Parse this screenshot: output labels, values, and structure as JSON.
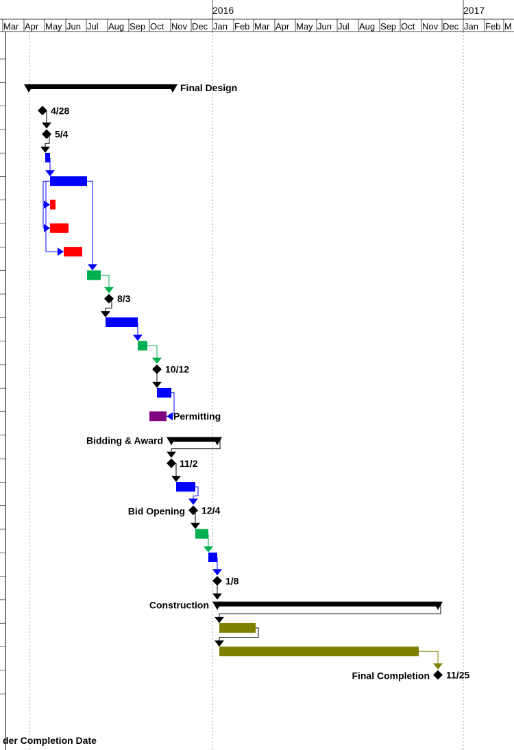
{
  "chart_data": {
    "type": "gantt",
    "timescale": {
      "years": [
        "2016",
        "2017"
      ],
      "months": [
        "Mar",
        "Apr",
        "May",
        "Jun",
        "Jul",
        "Aug",
        "Sep",
        "Oct",
        "Nov",
        "Dec",
        "Jan",
        "Feb",
        "Mar",
        "Apr",
        "May",
        "Jun",
        "Jul",
        "Aug",
        "Sep",
        "Oct",
        "Nov",
        "Dec",
        "Jan",
        "Feb",
        "M"
      ]
    },
    "colors": {
      "summary": "#000000",
      "blue": "#0000ff",
      "red": "#ff0000",
      "green": "#00b050",
      "purple": "#800080",
      "olive": "#808000",
      "milestone": "#000000"
    },
    "rows": [
      {
        "kind": "summary",
        "start": "2015-04-08",
        "end": "2015-11-04",
        "label": "Final Design",
        "label_side": "right"
      },
      {
        "kind": "milestone",
        "date": "2015-04-28",
        "label": "4/28",
        "label_side": "right"
      },
      {
        "kind": "milestone",
        "date": "2015-05-04",
        "label": "5/4",
        "label_side": "right"
      },
      {
        "kind": "task",
        "start": "2015-05-02",
        "end": "2015-05-09",
        "color": "blue"
      },
      {
        "kind": "task",
        "start": "2015-05-09",
        "end": "2015-07-02",
        "color": "blue"
      },
      {
        "kind": "task",
        "start": "2015-05-09",
        "end": "2015-05-17",
        "color": "red"
      },
      {
        "kind": "task",
        "start": "2015-05-09",
        "end": "2015-06-05",
        "color": "red"
      },
      {
        "kind": "task",
        "start": "2015-05-29",
        "end": "2015-06-25",
        "color": "red"
      },
      {
        "kind": "task",
        "start": "2015-07-02",
        "end": "2015-07-22",
        "color": "green"
      },
      {
        "kind": "milestone",
        "date": "2015-08-03",
        "label": "8/3",
        "label_side": "right"
      },
      {
        "kind": "task",
        "start": "2015-07-29",
        "end": "2015-09-14",
        "color": "blue"
      },
      {
        "kind": "task",
        "start": "2015-09-14",
        "end": "2015-09-28",
        "color": "green"
      },
      {
        "kind": "milestone",
        "date": "2015-10-12",
        "label": "10/12",
        "label_side": "right"
      },
      {
        "kind": "task",
        "start": "2015-10-12",
        "end": "2015-11-02",
        "color": "blue"
      },
      {
        "kind": "task",
        "start": "2015-10-01",
        "end": "2015-10-26",
        "color": "purple",
        "label": "Permitting",
        "label_side": "right"
      },
      {
        "kind": "summary",
        "start": "2015-11-02",
        "end": "2016-01-08",
        "label": "Bidding & Award",
        "label_side": "left"
      },
      {
        "kind": "milestone",
        "date": "2015-11-02",
        "label": "11/2",
        "label_side": "right"
      },
      {
        "kind": "task",
        "start": "2015-11-09",
        "end": "2015-12-07",
        "color": "blue"
      },
      {
        "kind": "milestone",
        "date": "2015-12-04",
        "label": "12/4",
        "label_side": "right",
        "left_label": "Bid Opening"
      },
      {
        "kind": "task",
        "start": "2015-12-07",
        "end": "2015-12-26",
        "color": "green"
      },
      {
        "kind": "task",
        "start": "2015-12-26",
        "end": "2016-01-08",
        "color": "blue"
      },
      {
        "kind": "milestone",
        "date": "2016-01-08",
        "label": "1/8",
        "label_side": "right"
      },
      {
        "kind": "summary",
        "start": "2016-01-08",
        "end": "2016-11-25",
        "label": "Construction",
        "label_side": "left"
      },
      {
        "kind": "task",
        "start": "2016-01-11",
        "end": "2016-03-04",
        "color": "olive"
      },
      {
        "kind": "task",
        "start": "2016-01-11",
        "end": "2016-10-28",
        "color": "olive"
      },
      {
        "kind": "milestone",
        "date": "2016-11-25",
        "label": "11/25",
        "label_side": "right",
        "left_label": "Final Completion"
      }
    ],
    "footer": "der Completion Date"
  }
}
